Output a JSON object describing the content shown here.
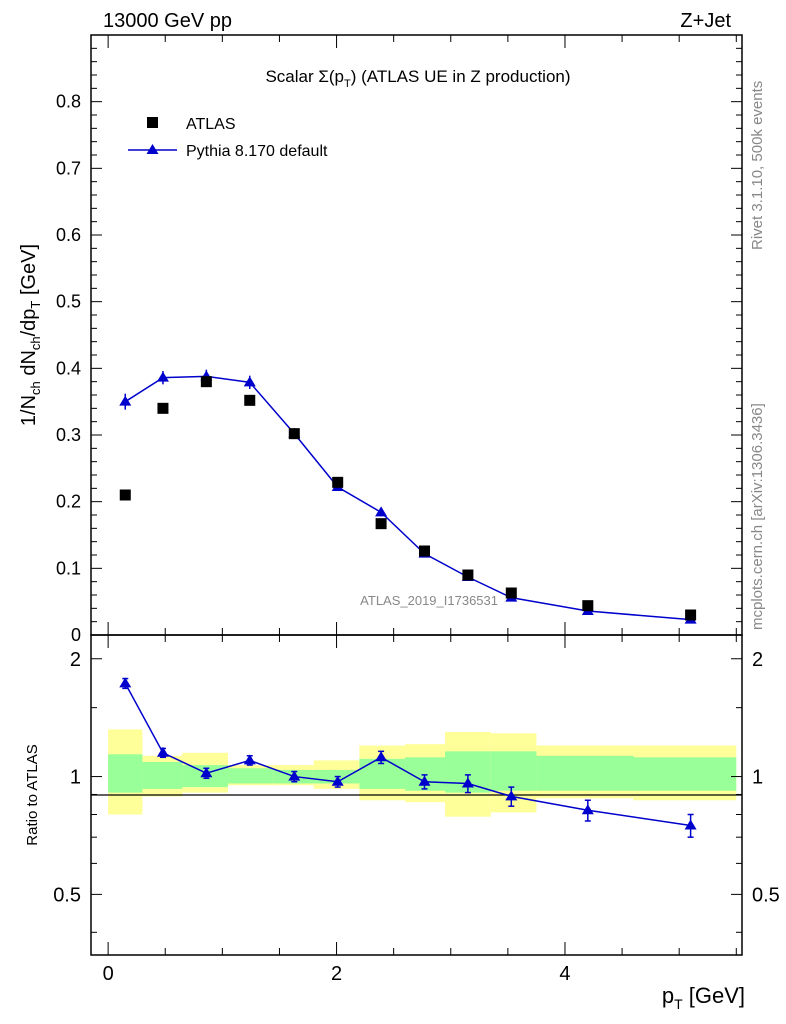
{
  "header": {
    "energy_label": "13000 GeV pp",
    "process_label": "Z+Jet"
  },
  "side": {
    "rivet_label": "Rivet 3.1.10,  500k events",
    "source_label": "mcplots.cern.ch [arXiv:1306.3436]"
  },
  "chart_data": [
    {
      "type": "scatter",
      "title": "Scalar Σ(p_T) (ATLAS UE in Z production)",
      "ylabel": "1/N_ch dN_ch/dp_T [GeV]",
      "analysis_label": "ATLAS_2019_I1736531",
      "xlim": [
        -0.15,
        5.55
      ],
      "ylim": [
        0,
        0.9
      ],
      "yticks": [
        0,
        0.1,
        0.2,
        0.3,
        0.4,
        0.5,
        0.6,
        0.7,
        0.8
      ],
      "ytick_labels": [
        "0",
        "0.1",
        "0.2",
        "0.3",
        "0.4",
        "0.5",
        "0.6",
        "0.7",
        "0.8"
      ],
      "legend": [
        "ATLAS",
        "Pythia 8.170 default"
      ],
      "series": [
        {
          "name": "ATLAS",
          "marker": "square",
          "color": "#000000",
          "x": [
            0.15,
            0.48,
            0.86,
            1.24,
            1.63,
            2.01,
            2.39,
            2.77,
            3.15,
            3.53,
            4.2,
            5.1
          ],
          "y": [
            0.21,
            0.34,
            0.38,
            0.352,
            0.302,
            0.229,
            0.167,
            0.126,
            0.09,
            0.063,
            0.044,
            0.03
          ]
        },
        {
          "name": "Pythia 8.170 default",
          "marker": "triangle",
          "color": "#0000cc",
          "x": [
            0.15,
            0.48,
            0.86,
            1.24,
            1.63,
            2.01,
            2.39,
            2.77,
            3.15,
            3.53,
            4.2,
            5.1
          ],
          "y": [
            0.35,
            0.386,
            0.388,
            0.379,
            0.302,
            0.222,
            0.184,
            0.122,
            0.087,
            0.056,
            0.036,
            0.023
          ],
          "yerr": [
            0.012,
            0.01,
            0.01,
            0.01,
            0.008,
            0.006,
            0.006,
            0.005,
            0.004,
            0.003,
            0.003,
            0.002
          ]
        }
      ]
    },
    {
      "type": "scatter",
      "xlabel": "p_T [GeV]",
      "ylabel": "Ratio to ATLAS",
      "xlim": [
        -0.15,
        5.55
      ],
      "ylim": [
        0.35,
        2.3
      ],
      "log_y": true,
      "xticks": [
        0,
        2,
        4
      ],
      "xtick_labels": [
        "0",
        "2",
        "4"
      ],
      "yticks": [
        0.5,
        1,
        2
      ],
      "ytick_labels": [
        "0.5",
        "1",
        "2"
      ],
      "bands": {
        "edges": [
          0,
          0.3,
          0.65,
          1.05,
          1.45,
          1.8,
          2.2,
          2.6,
          2.95,
          3.35,
          3.75,
          4.6,
          5.5
        ],
        "green_lo": [
          0.91,
          0.93,
          0.94,
          0.96,
          0.96,
          0.96,
          0.93,
          0.92,
          0.91,
          0.92,
          0.92,
          0.92
        ],
        "green_hi": [
          1.14,
          1.09,
          1.07,
          1.05,
          1.04,
          1.04,
          1.11,
          1.12,
          1.16,
          1.16,
          1.13,
          1.12
        ],
        "yellow_lo": [
          0.8,
          0.89,
          0.91,
          0.95,
          0.95,
          0.93,
          0.87,
          0.86,
          0.79,
          0.81,
          0.88,
          0.87
        ],
        "yellow_hi": [
          1.32,
          1.13,
          1.15,
          1.07,
          1.07,
          1.1,
          1.2,
          1.21,
          1.3,
          1.29,
          1.2,
          1.2
        ]
      },
      "series": [
        {
          "name": "Pythia 8.170 default",
          "marker": "triangle",
          "color": "#0000cc",
          "x": [
            0.15,
            0.48,
            0.86,
            1.24,
            1.63,
            2.01,
            2.39,
            2.77,
            3.15,
            3.53,
            4.2,
            5.1
          ],
          "y": [
            1.73,
            1.15,
            1.02,
            1.1,
            1.0,
            0.97,
            1.12,
            0.97,
            0.96,
            0.89,
            0.82,
            0.75
          ],
          "yerr": [
            0.05,
            0.03,
            0.03,
            0.03,
            0.03,
            0.03,
            0.04,
            0.04,
            0.05,
            0.05,
            0.05,
            0.05
          ]
        }
      ]
    }
  ]
}
